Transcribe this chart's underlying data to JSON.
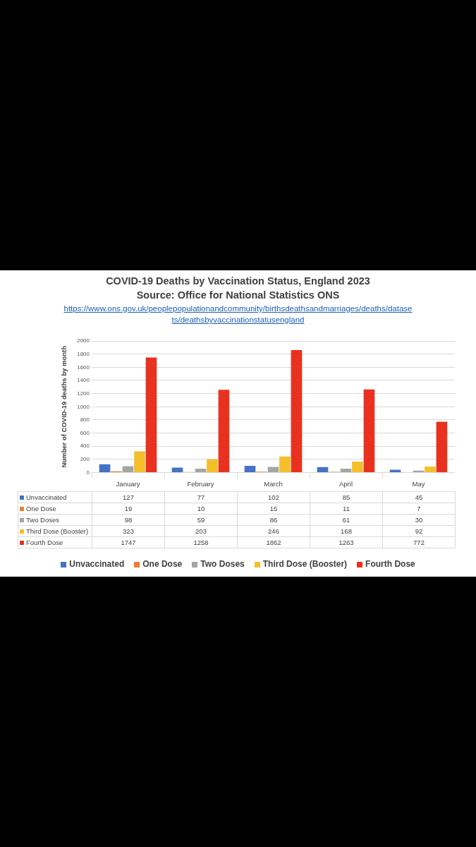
{
  "chart_data": {
    "type": "bar",
    "title": "COVID-19 Deaths by Vaccination Status, England 2023",
    "subtitle": "Source: Office for National Statistics ONS",
    "annotations": [
      "https://www.ons.gov.uk/peoplepopulationandcommunity/birthsdeathsandmarriages/deaths/datasets/deathsbyvaccinationstatusengland"
    ],
    "ylabel": "Number of COVID-19 deaths by month",
    "categories": [
      "January",
      "February",
      "March",
      "April",
      "May"
    ],
    "series": [
      {
        "name": "Unvaccinated",
        "color": "#4472c4",
        "values": [
          127,
          77,
          102,
          85,
          45
        ]
      },
      {
        "name": "One Dose",
        "color": "#ed7d31",
        "values": [
          19,
          10,
          15,
          11,
          7
        ]
      },
      {
        "name": "Two Doses",
        "color": "#a5a5a5",
        "values": [
          98,
          59,
          86,
          61,
          30
        ]
      },
      {
        "name": "Third Dose (Booster)",
        "color": "#f4bf2a",
        "values": [
          323,
          203,
          246,
          168,
          92
        ]
      },
      {
        "name": "Fourth Dose",
        "color": "#e8321f",
        "values": [
          1747,
          1258,
          1862,
          1263,
          772
        ]
      }
    ],
    "ylim": [
      0,
      2000
    ],
    "yticks": [
      0,
      200,
      400,
      600,
      800,
      1000,
      1200,
      1400,
      1600,
      1800,
      2000
    ],
    "grid": "y",
    "legend": "bottom",
    "data_labels": true
  }
}
